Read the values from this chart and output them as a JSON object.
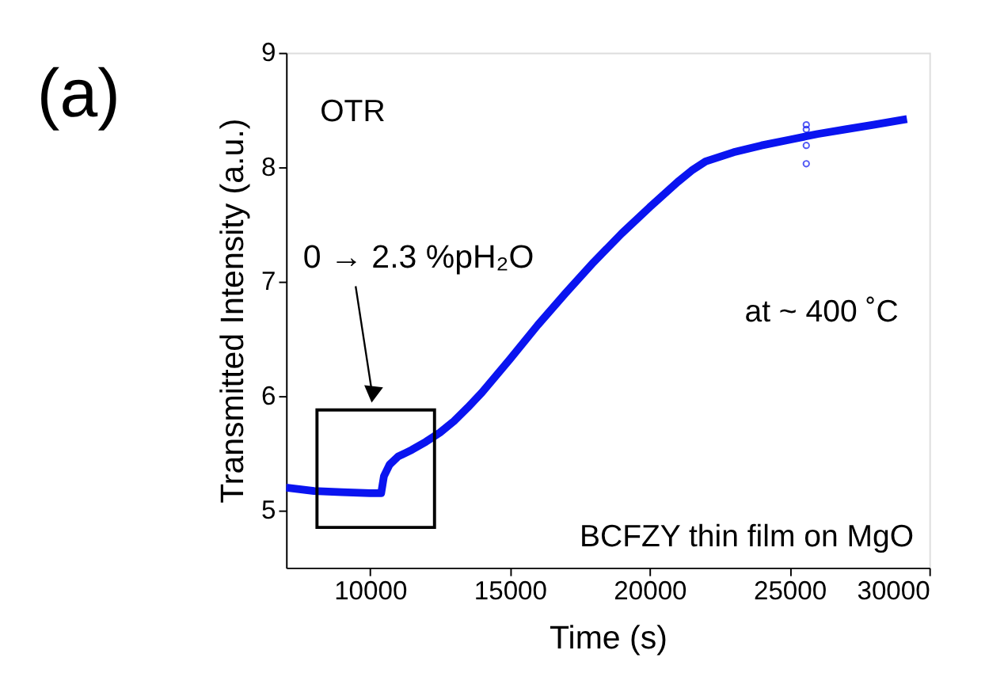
{
  "chart_data": {
    "type": "line",
    "xlabel": "Time (s)",
    "ylabel": "Transmitted Intensity (a.u.)",
    "xlim": [
      7000,
      30000
    ],
    "xticks": [
      10000,
      15000,
      20000,
      25000,
      30000
    ],
    "ylim": [
      4.5,
      9
    ],
    "yticks": [
      5,
      6,
      7,
      8,
      9
    ],
    "grid": false,
    "legend": false,
    "series": [
      {
        "color": "#0a14f0",
        "line_style": "solid",
        "marker": "none",
        "x": [
          7000,
          8000,
          9000,
          10000,
          10400,
          10500,
          10700,
          11000,
          11500,
          12000,
          12500,
          13000,
          13500,
          14000,
          15000,
          16000,
          17000,
          18000,
          19000,
          20000,
          21000,
          21500,
          22000,
          23000,
          24000,
          25000,
          26000,
          27000,
          28000,
          29200
        ],
        "values": [
          5.2,
          5.17,
          5.16,
          5.15,
          5.15,
          5.3,
          5.4,
          5.47,
          5.53,
          5.6,
          5.68,
          5.78,
          5.9,
          6.03,
          6.32,
          6.62,
          6.9,
          7.17,
          7.42,
          7.65,
          7.87,
          7.97,
          8.05,
          8.13,
          8.19,
          8.24,
          8.29,
          8.33,
          8.37,
          8.42
        ]
      },
      {
        "type": "scatter",
        "color": "#0a14f0",
        "marker": "circle",
        "x": [
          25600,
          25600,
          25600,
          25600
        ],
        "values": [
          8.37,
          8.33,
          8.19,
          8.03
        ]
      }
    ],
    "annotations": [
      "(a)",
      "OTR",
      "0 → 2.3 %pH₂O",
      "at ~ 400 ˚C",
      "BCFZY thin film on MgO"
    ]
  }
}
